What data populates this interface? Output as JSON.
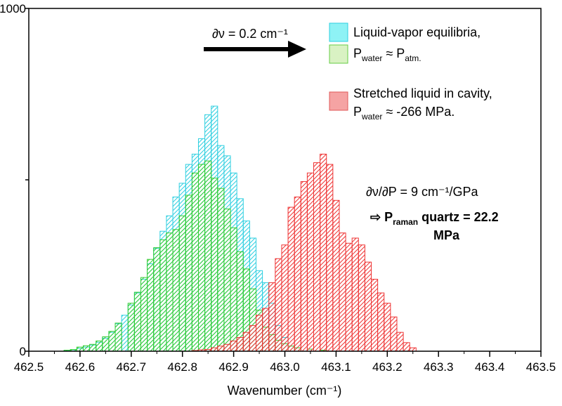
{
  "chart_data": {
    "type": "bar",
    "xlabel": "Wavenumber (cm⁻¹)",
    "xlim": [
      462.5,
      463.5
    ],
    "ylim": [
      0,
      1000
    ],
    "x_ticks": [
      "462.5",
      "462.6",
      "462.7",
      "462.8",
      "462.9",
      "463.0",
      "463.1",
      "463.2",
      "463.3",
      "463.4",
      "463.5"
    ],
    "y_ticks": [
      "0",
      "1000"
    ],
    "bin_width": 0.0125,
    "series": [
      {
        "key": "vapor_cyan",
        "color": "#2ecfe0",
        "x": [
          462.575,
          462.5875,
          462.6,
          462.6125,
          462.625,
          462.6375,
          462.65,
          462.6625,
          462.675,
          462.6875,
          462.7,
          462.7125,
          462.725,
          462.7375,
          462.75,
          462.7625,
          462.775,
          462.7875,
          462.8,
          462.8125,
          462.825,
          462.8375,
          462.85,
          462.8625,
          462.875,
          462.8875,
          462.9,
          462.9125,
          462.925,
          462.9375,
          462.95,
          462.9625,
          462.975,
          462.9875,
          463.0
        ],
        "values": [
          2,
          4,
          8,
          12,
          18,
          26,
          38,
          55,
          80,
          105,
          135,
          170,
          210,
          255,
          300,
          350,
          395,
          450,
          490,
          545,
          575,
          620,
          690,
          715,
          600,
          570,
          520,
          445,
          380,
          330,
          235,
          200,
          140,
          75,
          40
        ]
      },
      {
        "key": "vapor_green",
        "color": "#33cc33",
        "x": [
          462.575,
          462.5875,
          462.6,
          462.6125,
          462.625,
          462.6375,
          462.65,
          462.6625,
          462.675,
          462.7,
          462.7125,
          462.725,
          462.7375,
          462.75,
          462.7625,
          462.775,
          462.7875,
          462.8,
          462.8125,
          462.825,
          462.8375,
          462.85,
          462.8625,
          462.875,
          462.8875,
          462.9,
          462.9125,
          462.925,
          462.9375,
          462.95,
          462.9625,
          462.975,
          462.9875,
          463.0,
          463.0125,
          463.025,
          463.05,
          463.075
        ],
        "values": [
          3,
          5,
          12,
          16,
          20,
          30,
          42,
          58,
          82,
          140,
          172,
          215,
          268,
          302,
          325,
          345,
          355,
          395,
          455,
          520,
          545,
          555,
          505,
          475,
          415,
          360,
          290,
          240,
          182,
          120,
          70,
          48,
          32,
          22,
          15,
          10,
          6,
          3
        ]
      },
      {
        "key": "stretched_red",
        "color": "#ee3333",
        "x": [
          462.825,
          462.8375,
          462.85,
          462.8625,
          462.875,
          462.8875,
          462.9,
          462.9125,
          462.925,
          462.9375,
          462.95,
          462.9625,
          462.975,
          462.9875,
          463.0,
          463.0125,
          463.025,
          463.0375,
          463.05,
          463.0625,
          463.075,
          463.0875,
          463.1,
          463.1125,
          463.125,
          463.1375,
          463.15,
          463.1625,
          463.175,
          463.1875,
          463.2,
          463.2125,
          463.225,
          463.2375,
          463.25
        ],
        "values": [
          2,
          4,
          5,
          10,
          15,
          20,
          30,
          40,
          55,
          75,
          105,
          125,
          200,
          270,
          310,
          420,
          450,
          495,
          520,
          550,
          575,
          545,
          440,
          345,
          315,
          330,
          310,
          260,
          210,
          170,
          140,
          100,
          55,
          25,
          10
        ]
      }
    ],
    "legend": {
      "placement": "top-right",
      "entries": [
        {
          "color": "#8ef2f5",
          "label": "Liquid-vapor equilibria,"
        },
        {
          "color": "#d9f2c3",
          "label": "P_water ≈ P_atm."
        },
        {
          "color": "#f5a3a3",
          "label": "Stretched liquid in cavity,"
        }
      ],
      "continuation": "P_water ≈ -266 MPa."
    },
    "annotations": {
      "arrow_label": "∂ν = 0.2 cm⁻¹",
      "slope": "∂ν/∂P = 9 cm⁻¹/GPa",
      "result_prefix": "⇨ ",
      "result_main": "P",
      "result_sub": "raman",
      "result_rest": " quartz = 22.2",
      "result_line2": "MPa"
    }
  }
}
